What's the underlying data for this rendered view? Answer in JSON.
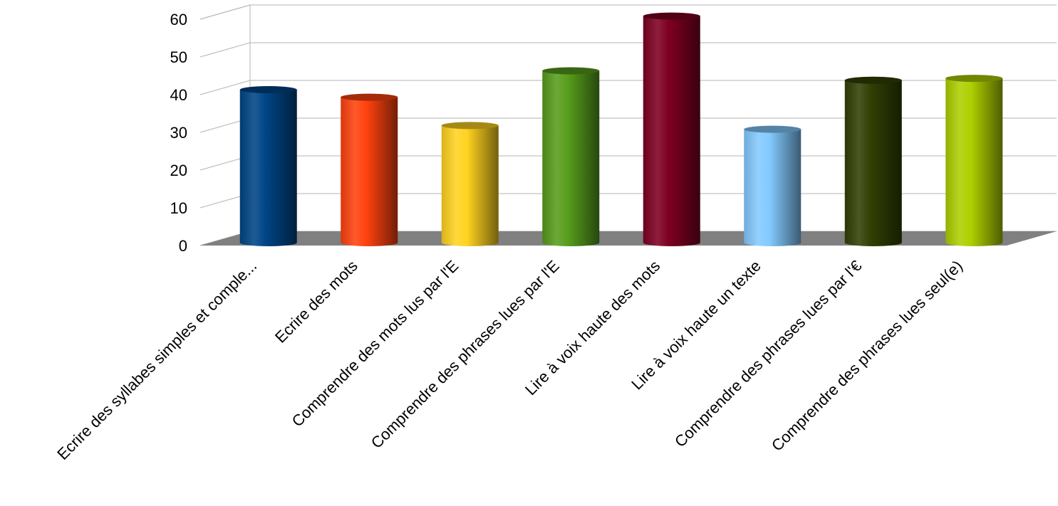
{
  "chart_data": {
    "type": "bar",
    "style": "3d-cylinder",
    "categories": [
      "Ecrire des syllabes simples et comple...",
      "Ecrire des mots",
      "Comprendre des mots lus par l'E",
      "Comprendre des phrases lues par l'E",
      "Lire à voix haute des mots",
      "Lire à voix haute un texte",
      "Comprendre des phrases lues par l'€",
      "Comprendre des phrases lues seul(e)"
    ],
    "values": [
      40,
      38,
      30.5,
      45,
      59.5,
      29.5,
      42.5,
      43
    ],
    "colors": [
      "#004586",
      "#ff420e",
      "#ffd320",
      "#579d1c",
      "#7e0021",
      "#83caff",
      "#314004",
      "#aecf00"
    ],
    "ylim": [
      0,
      60
    ],
    "yticks": [
      "0",
      "10",
      "20",
      "30",
      "40",
      "50",
      "60"
    ],
    "grid": true,
    "title": "",
    "xlabel": "",
    "ylabel": ""
  }
}
